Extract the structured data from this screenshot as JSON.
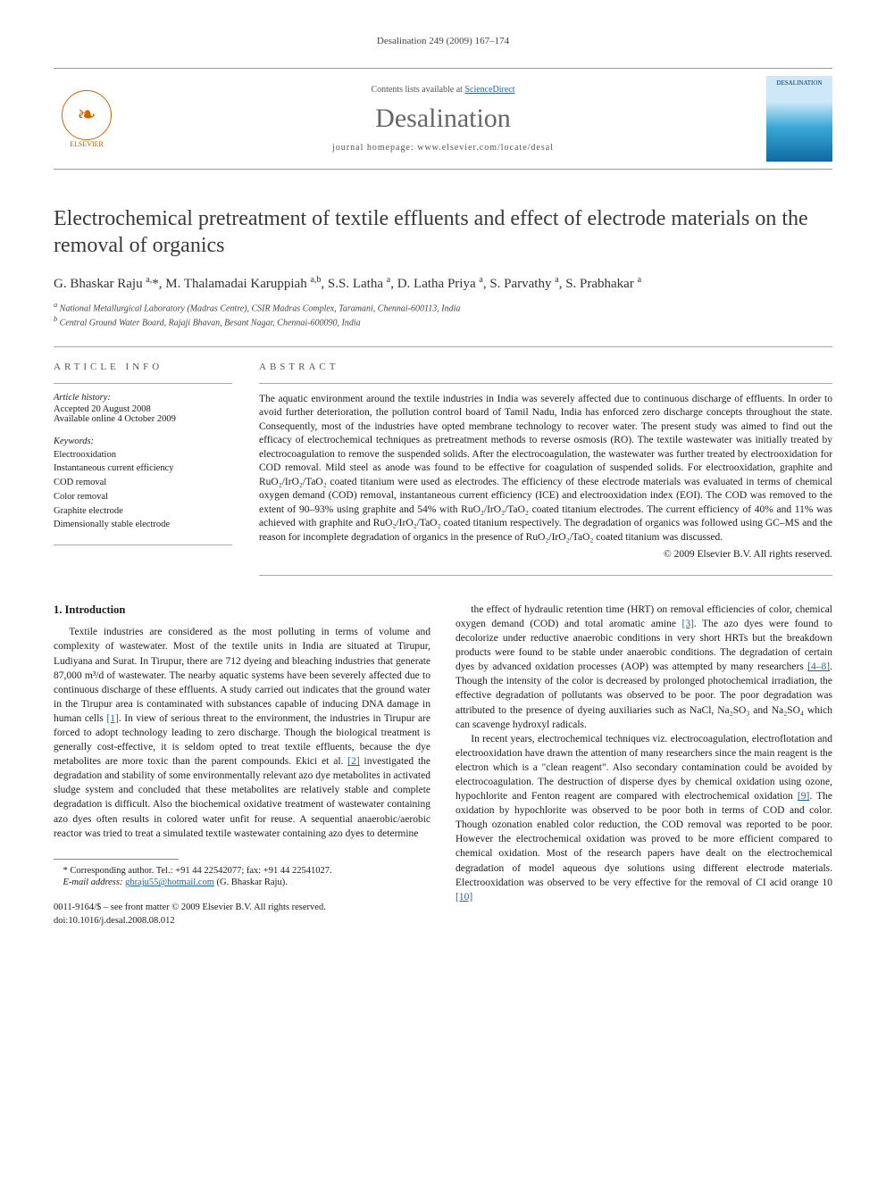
{
  "running_header": "Desalination 249 (2009) 167–174",
  "masthead": {
    "contents_prefix": "Contents lists available at ",
    "contents_link": "ScienceDirect",
    "journal": "Desalination",
    "homepage_prefix": "journal homepage: ",
    "homepage": "www.elsevier.com/locate/desal",
    "elsevier": "ELSEVIER",
    "cover_label": "DESALINATION"
  },
  "title": "Electrochemical pretreatment of textile effluents and effect of electrode materials on the removal of organics",
  "authors_html": "G. Bhaskar Raju <sup>a,</sup>*, M. Thalamadai Karuppiah <sup>a,b</sup>, S.S. Latha <sup>a</sup>, D. Latha Priya <sup>a</sup>, S. Parvathy <sup>a</sup>, S. Prabhakar <sup>a</sup>",
  "affiliations": {
    "a": "National Metallurgical Laboratory (Madras Centre), CSIR Madras Complex, Taramani, Chennai-600113, India",
    "b": "Central Ground Water Board, Rajaji Bhavan, Besant Nagar, Chennai-600090, India"
  },
  "info": {
    "head": "article info",
    "history_label": "Article history:",
    "accepted": "Accepted 20 August 2008",
    "online": "Available online 4 October 2009",
    "keywords_label": "Keywords:",
    "keywords": [
      "Electrooxidation",
      "Instantaneous current efficiency",
      "COD removal",
      "Color removal",
      "Graphite electrode",
      "Dimensionally stable electrode"
    ]
  },
  "abstract": {
    "head": "abstract",
    "text": "The aquatic environment around the textile industries in India was severely affected due to continuous discharge of effluents. In order to avoid further deterioration, the pollution control board of Tamil Nadu, India has enforced zero discharge concepts throughout the state. Consequently, most of the industries have opted membrane technology to recover water. The present study was aimed to find out the efficacy of electrochemical techniques as pretreatment methods to reverse osmosis (RO). The textile wastewater was initially treated by electrocoagulation to remove the suspended solids. After the electrocoagulation, the wastewater was further treated by electrooxidation for COD removal. Mild steel as anode was found to be effective for coagulation of suspended solids. For electrooxidation, graphite and RuO₂/IrO₂/TaO₂ coated titanium were used as electrodes. The efficiency of these electrode materials was evaluated in terms of chemical oxygen demand (COD) removal, instantaneous current efficiency (ICE) and electrooxidation index (EOI). The COD was removed to the extent of 90–93% using graphite and 54% with RuO₂/IrO₂/TaO₂ coated titanium electrodes. The current efficiency of 40% and 11% was achieved with graphite and RuO₂/IrO₂/TaO₂ coated titanium respectively. The degradation of organics was followed using GC–MS and the reason for incomplete degradation of organics in the presence of RuO₂/IrO₂/TaO₂ coated titanium was discussed.",
    "copyright": "© 2009 Elsevier B.V. All rights reserved."
  },
  "section1": {
    "heading": "1. Introduction",
    "p1_pre": "Textile industries are considered as the most polluting in terms of volume and complexity of wastewater. Most of the textile units in India are situated at Tirupur, Ludiyana and Surat. In Tirupur, there are 712 dyeing and bleaching industries that generate 87,000 m³/d of wastewater. The nearby aquatic systems have been severely affected due to continuous discharge of these effluents. A study carried out indicates that the ground water in the Tirupur area is contaminated with substances capable of inducing DNA damage in human cells ",
    "ref1": "[1]",
    "p1_mid": ". In view of serious threat to the environment, the industries in Tirupur are forced to adopt technology leading to zero discharge. Though the biological treatment is generally cost-effective, it is seldom opted to treat textile effluents, because the dye metabolites are more toxic than the parent compounds. Ekici et al. ",
    "ref2": "[2]",
    "p1_post": " investigated the degradation and stability of some environmentally relevant azo dye metabolites in activated sludge system and concluded that these metabolites are relatively stable and complete degradation is difficult. Also the biochemical oxidative treatment of wastewater containing azo dyes often results in colored water unfit for reuse. A sequential anaerobic/aerobic reactor was tried to treat a simulated textile wastewater containing azo dyes to determine",
    "p2_pre": "the effect of hydraulic retention time (HRT) on removal efficiencies of color, chemical oxygen demand (COD) and total aromatic amine ",
    "ref3": "[3]",
    "p2_mid": ". The azo dyes were found to decolorize under reductive anaerobic conditions in very short HRTs but the breakdown products were found to be stable under anaerobic conditions. The degradation of certain dyes by advanced oxidation processes (AOP) was attempted by many researchers ",
    "ref48": "[4–8]",
    "p2_post": ". Though the intensity of the color is decreased by prolonged photochemical irradiation, the effective degradation of pollutants was observed to be poor. The poor degradation was attributed to the presence of dyeing auxiliaries such as NaCl, Na₂SO₃ and Na₂SO₄ which can scavenge hydroxyl radicals.",
    "p3_pre": "In recent years, electrochemical techniques viz. electrocoagulation, electroflotation and electrooxidation have drawn the attention of many researchers since the main reagent is the electron which is a \"clean reagent\". Also secondary contamination could be avoided by electrocoagulation. The destruction of disperse dyes by chemical oxidation using ozone, hypochlorite and Fenton reagent are compared with electrochemical oxidation ",
    "ref9": "[9]",
    "p3_mid": ". The oxidation by hypochlorite was observed to be poor both in terms of COD and color. Though ozonation enabled color reduction, the COD removal was reported to be poor. However the electrochemical oxidation was proved to be more efficient compared to chemical oxidation. Most of the research papers have dealt on the electrochemical degradation of model aqueous dye solutions using different electrode materials. Electrooxidation was observed to be very effective for the removal of CI acid orange 10 ",
    "ref10": "[10]"
  },
  "footnote": {
    "corr": "* Corresponding author. Tel.: +91 44 22542077; fax: +91 44 22541027.",
    "email_label": "E-mail address: ",
    "email": "gbraju55@hotmail.com",
    "email_name": " (G. Bhaskar Raju)."
  },
  "footer": {
    "line1": "0011-9164/$ – see front matter © 2009 Elsevier B.V. All rights reserved.",
    "line2": "doi:10.1016/j.desal.2008.08.012"
  },
  "colors": {
    "link": "#2a6496",
    "text": "#1a1a1a",
    "rule": "#aaaaaa"
  }
}
